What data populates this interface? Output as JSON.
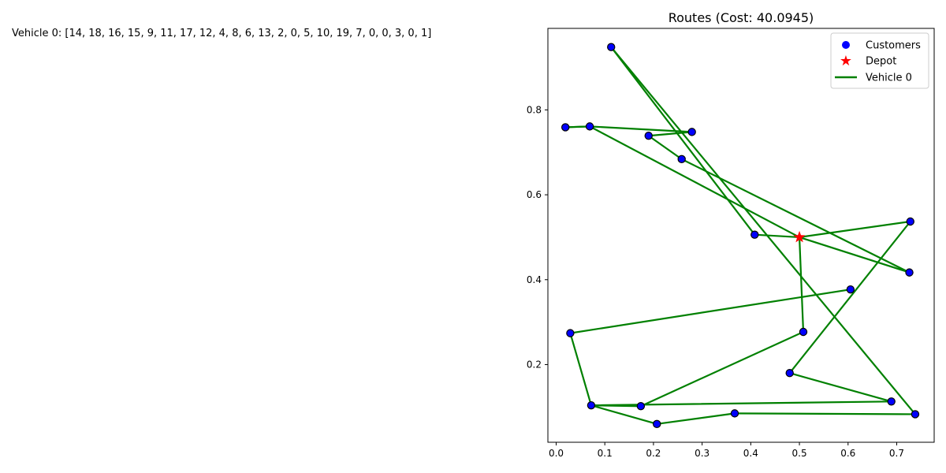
{
  "vehicle_routes_text": "Vehicle 0: [14, 18, 16, 15, 9, 11, 17, 12, 4, 8, 6, 13, 2, 0, 5, 10, 19, 7, 0, 0, 3, 0, 1]",
  "colors": {
    "customers": "#0000ff",
    "customer_edge": "#000000",
    "depot": "#ff0000",
    "route": "#008000"
  },
  "chart_data": {
    "type": "scatter",
    "title": "Routes (Cost: 40.0945)",
    "xlabel": "",
    "ylabel": "",
    "xlim": [
      -0.017,
      0.777
    ],
    "ylim": [
      0.017,
      0.992
    ],
    "xticks": [
      "0.0",
      "0.1",
      "0.2",
      "0.3",
      "0.4",
      "0.5",
      "0.6",
      "0.7"
    ],
    "yticks": [
      "0.2",
      "0.4",
      "0.6",
      "0.8"
    ],
    "grid": false,
    "legend_position": "top-right",
    "legend": [
      "Customers",
      "Depot",
      "Vehicle 0"
    ],
    "depot": {
      "x": 0.5,
      "y": 0.5
    },
    "customers": [
      {
        "x": 0.113,
        "y": 0.948
      },
      {
        "x": 0.279,
        "y": 0.748
      },
      {
        "x": 0.19,
        "y": 0.739
      },
      {
        "x": 0.069,
        "y": 0.761
      },
      {
        "x": 0.019,
        "y": 0.759
      },
      {
        "x": 0.258,
        "y": 0.684
      },
      {
        "x": 0.408,
        "y": 0.506
      },
      {
        "x": 0.728,
        "y": 0.537
      },
      {
        "x": 0.726,
        "y": 0.417
      },
      {
        "x": 0.605,
        "y": 0.377
      },
      {
        "x": 0.029,
        "y": 0.274
      },
      {
        "x": 0.508,
        "y": 0.277
      },
      {
        "x": 0.48,
        "y": 0.18
      },
      {
        "x": 0.689,
        "y": 0.113
      },
      {
        "x": 0.072,
        "y": 0.104
      },
      {
        "x": 0.174,
        "y": 0.102
      },
      {
        "x": 0.207,
        "y": 0.06
      },
      {
        "x": 0.367,
        "y": 0.085
      },
      {
        "x": 0.738,
        "y": 0.083
      }
    ],
    "series": [
      {
        "name": "Vehicle 0",
        "x": [
          0.5,
          0.069,
          0.019,
          0.069,
          0.279,
          0.19,
          0.258,
          0.726,
          0.5,
          0.508,
          0.174,
          0.072,
          0.689,
          0.48,
          0.728,
          0.5,
          0.408,
          0.113,
          0.738,
          0.367,
          0.207,
          0.072,
          0.029,
          0.605
        ],
        "y": [
          0.5,
          0.761,
          0.759,
          0.761,
          0.748,
          0.739,
          0.684,
          0.417,
          0.5,
          0.277,
          0.102,
          0.104,
          0.113,
          0.18,
          0.537,
          0.5,
          0.506,
          0.948,
          0.083,
          0.085,
          0.06,
          0.104,
          0.274,
          0.377
        ]
      }
    ]
  }
}
